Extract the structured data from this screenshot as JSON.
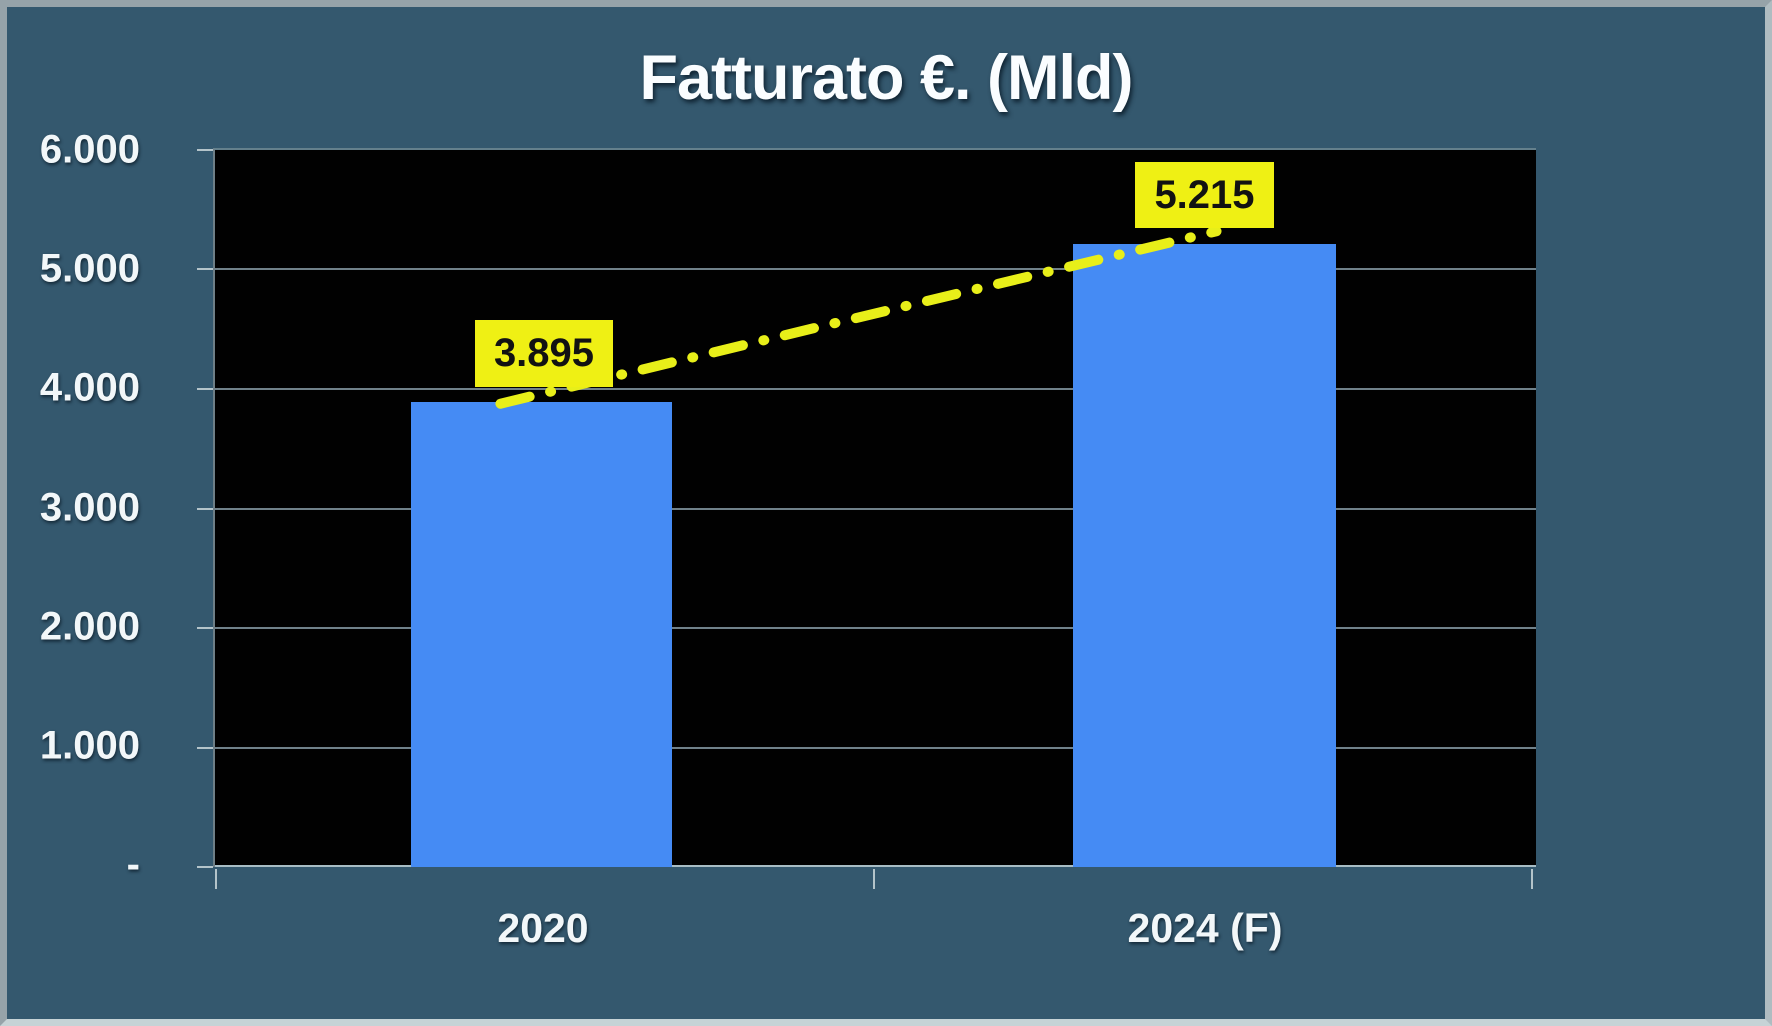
{
  "window": {
    "background_color": "#34586E",
    "frame_border_color": "#A7B4B8"
  },
  "chart_data": {
    "type": "bar",
    "title": "Fatturato €. (Mld)",
    "categories": [
      "2020",
      "2024 (F)"
    ],
    "values": [
      3895,
      5215
    ],
    "value_labels": [
      "3.895",
      "5.215"
    ],
    "ylim": [
      0,
      6000
    ],
    "yticks": [
      6000,
      5000,
      4000,
      3000,
      2000,
      1000,
      0
    ],
    "ytick_labels": [
      "6.000",
      "5.000",
      "4.000",
      "3.000",
      "2.000",
      "1.000",
      "-"
    ],
    "xlabel": "",
    "ylabel": "",
    "grid": true,
    "legend": false,
    "plot_background": "#010101",
    "bar_color": "#458BF4",
    "data_label_background": "#EFF014",
    "data_label_text_color": "#121212",
    "trend_line_color": "#E8EF19",
    "trend_line_style": "dash-dot",
    "annotations": [
      "yellow dash-dot trend line connecting bar tops"
    ]
  }
}
